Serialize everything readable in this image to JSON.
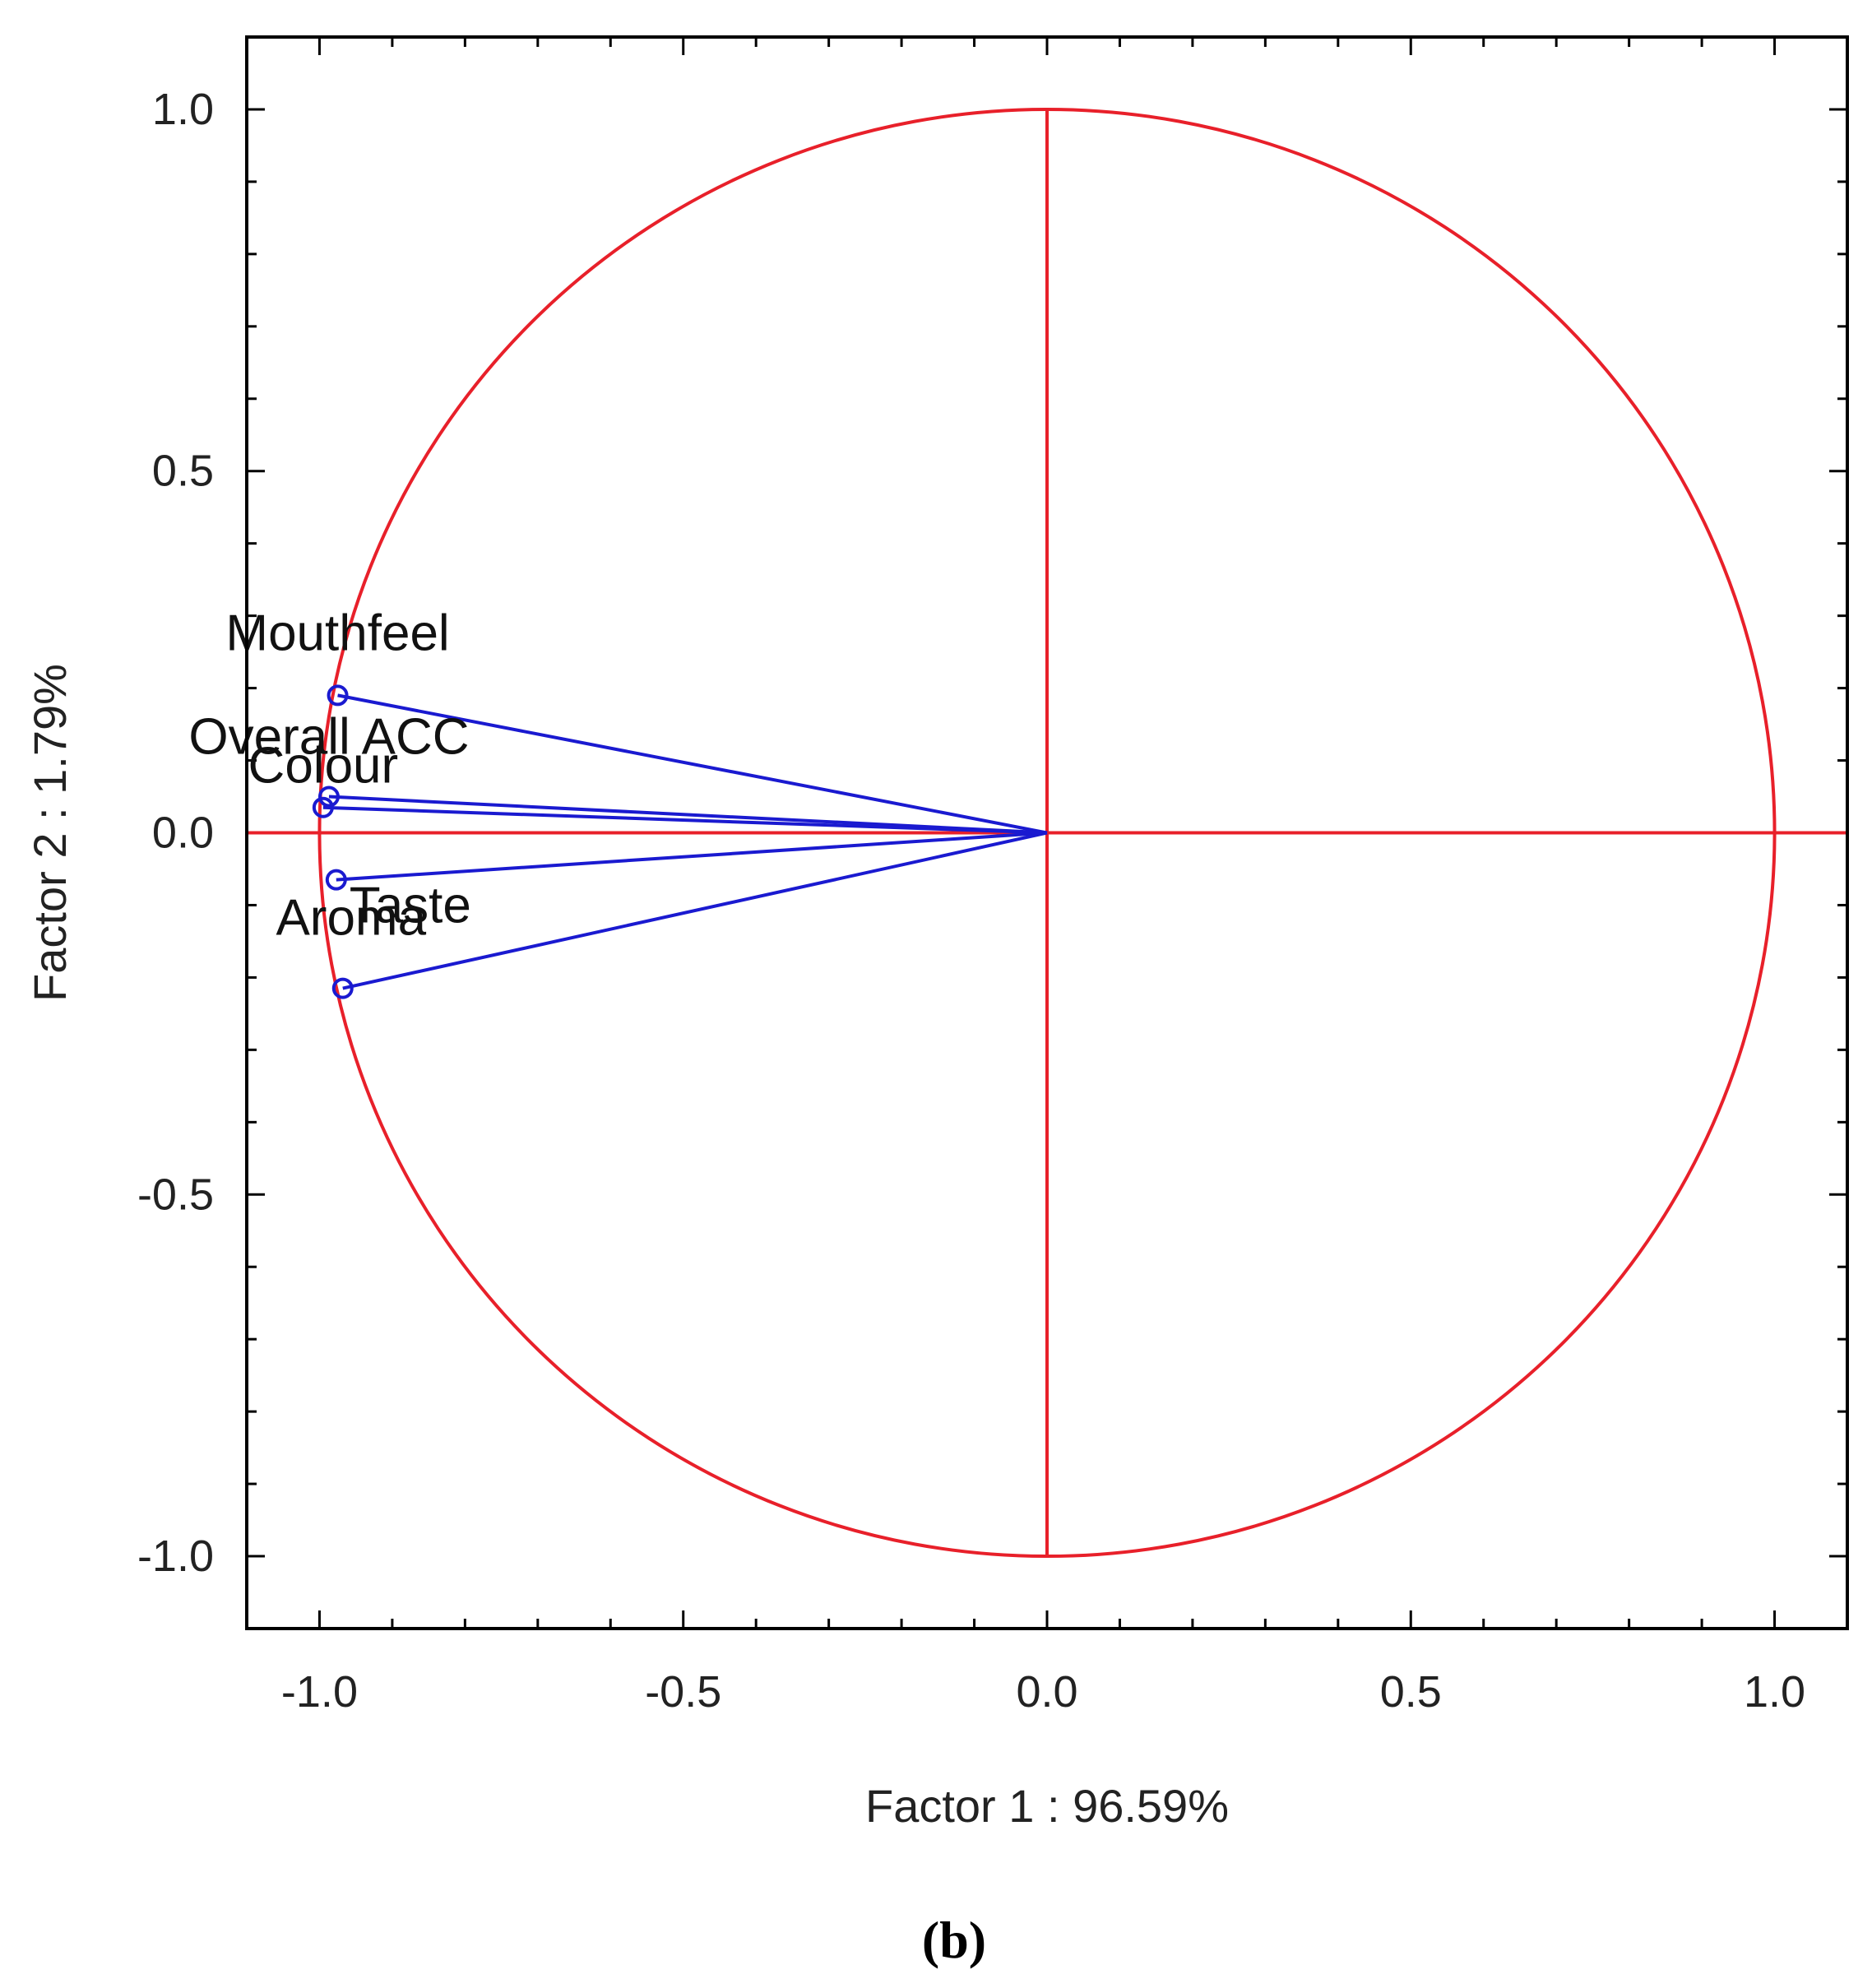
{
  "chart_data": {
    "type": "scatter",
    "subtype": "pca-correlation-circle",
    "title": "",
    "xlabel": "Factor 1 : 96.59%",
    "ylabel": "Factor 2 :  1.79%",
    "xlim": [
      -1.1,
      1.1
    ],
    "ylim": [
      -1.1,
      1.1
    ],
    "xticks": [
      -1.0,
      -0.5,
      0.0,
      0.5,
      1.0
    ],
    "yticks": [
      -1.0,
      -0.5,
      0.0,
      0.5,
      1.0
    ],
    "xtick_labels": [
      "-1.0",
      "-0.5",
      "0.0",
      "0.5",
      "1.0"
    ],
    "ytick_labels": [
      "-1.0",
      "-0.5",
      "0.0",
      "0.5",
      "1.0"
    ],
    "grid": false,
    "legend": "none",
    "unit_circle": true,
    "reference_lines": {
      "x": 0,
      "y": 0
    },
    "colors": {
      "circle": "#e8202a",
      "vectors": "#1a1ad0",
      "frame": "#000000"
    },
    "variables": [
      {
        "label": "Mouthfeel",
        "x": -0.975,
        "y": 0.19
      },
      {
        "label": "Overall ACC",
        "x": -0.987,
        "y": 0.05
      },
      {
        "label": "Colour",
        "x": -0.995,
        "y": 0.035
      },
      {
        "label": "Taste",
        "x": -0.977,
        "y": -0.065
      },
      {
        "label": "Aroma",
        "x": -0.968,
        "y": -0.215
      }
    ]
  },
  "panel_label": "(b)"
}
